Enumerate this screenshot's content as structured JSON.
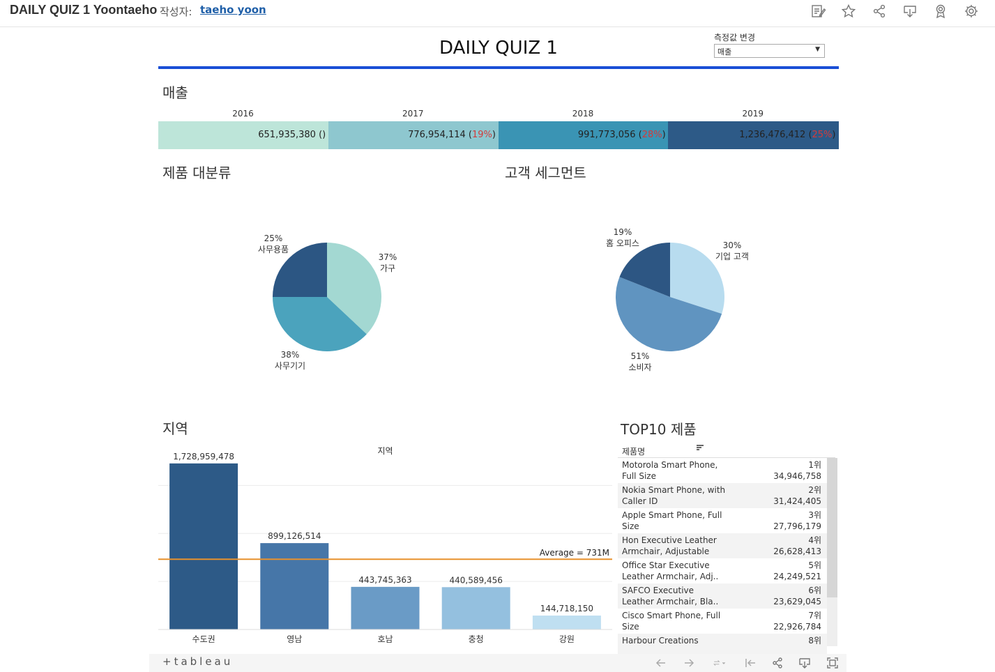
{
  "header": {
    "workbook_title": "DAILY QUIZ 1 Yoontaeho",
    "author_label": "작성자:",
    "author_name": "taeho yoon"
  },
  "header_icons": [
    "edit-icon",
    "star-icon",
    "share-icon",
    "download-icon",
    "badge-icon",
    "settings-icon"
  ],
  "dashboard": {
    "title": "DAILY QUIZ 1",
    "measure_label": "측정값 변경",
    "measure_value": "매출"
  },
  "sales": {
    "section_title": "매출",
    "years": [
      {
        "year": "2016",
        "value": "651,935,380",
        "pct": "",
        "color": "#bde5d9"
      },
      {
        "year": "2017",
        "value": "776,954,114",
        "pct": "19%",
        "color": "#8ec7cf"
      },
      {
        "year": "2018",
        "value": "991,773,056",
        "pct": "28%",
        "color": "#3a94b4"
      },
      {
        "year": "2019",
        "value": "1,236,476,412",
        "pct": "25%",
        "color": "#2d5a87"
      }
    ]
  },
  "category": {
    "section_title": "제품 대분류",
    "slices": [
      {
        "name": "가구",
        "pct": "37%",
        "value": 37,
        "color": "#a3d8d2"
      },
      {
        "name": "사무기기",
        "pct": "38%",
        "value": 38,
        "color": "#4ba3bd"
      },
      {
        "name": "사무용품",
        "pct": "25%",
        "value": 25,
        "color": "#2c5683"
      }
    ]
  },
  "segment": {
    "section_title": "고객 세그먼트",
    "slices": [
      {
        "name": "기업 고객",
        "pct": "30%",
        "value": 30,
        "color": "#b8dcef"
      },
      {
        "name": "소비자",
        "pct": "51%",
        "value": 51,
        "color": "#6094c0"
      },
      {
        "name": "홈 오피스",
        "pct": "19%",
        "value": 19,
        "color": "#2d5683"
      }
    ]
  },
  "region": {
    "section_title": "지역",
    "chart_title": "지역",
    "average_label": "Average = 731M"
  },
  "chart_data": {
    "type": "bar",
    "title": "지역",
    "categories": [
      "수도권",
      "영남",
      "호남",
      "충청",
      "강원"
    ],
    "values": [
      1728959478,
      899126514,
      443745363,
      440589456,
      144718150
    ],
    "value_labels": [
      "1,728,959,478",
      "899,126,514",
      "443,745,363",
      "440,589,456",
      "144,718,150"
    ],
    "colors": [
      "#2d5a87",
      "#4676a8",
      "#6a9bc6",
      "#94c0df",
      "#bfdff1"
    ],
    "reference_line": {
      "label": "Average = 731M",
      "value": 731427792,
      "color": "#e8912d"
    },
    "ylim": [
      0,
      1800000000
    ],
    "grid": true
  },
  "top10": {
    "section_title": "TOP10 제품",
    "column_header": "제품명",
    "rows": [
      {
        "name": "Motorola Smart Phone, Full Size",
        "rank": "1위",
        "value": "34,946,758"
      },
      {
        "name": "Nokia Smart Phone, with Caller ID",
        "rank": "2위",
        "value": "31,424,405"
      },
      {
        "name": "Apple Smart Phone, Full Size",
        "rank": "3위",
        "value": "27,796,179"
      },
      {
        "name": "Hon Executive Leather Armchair, Adjustable",
        "rank": "4위",
        "value": "26,628,413"
      },
      {
        "name": "Office Star Executive Leather Armchair, Adj..",
        "rank": "5위",
        "value": "24,249,521"
      },
      {
        "name": "SAFCO Executive Leather Armchair, Bla..",
        "rank": "6위",
        "value": "23,629,045"
      },
      {
        "name": "Cisco Smart Phone, Full Size",
        "rank": "7위",
        "value": "22,926,784"
      },
      {
        "name": "Harbour Creations",
        "rank": "8위",
        "value": ""
      }
    ]
  },
  "footer": {
    "logo": "+tableau"
  }
}
